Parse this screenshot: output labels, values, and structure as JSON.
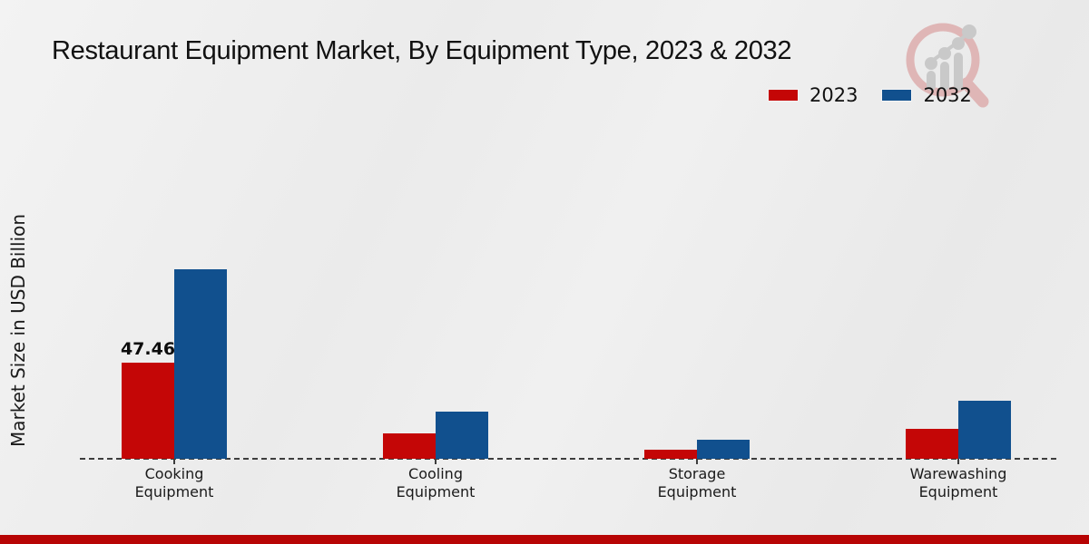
{
  "title": "Restaurant Equipment Market, By Equipment Type, 2023 & 2032",
  "ylabel": "Market Size in USD Billion",
  "legend": [
    {
      "label": "2023",
      "color": "#c40606"
    },
    {
      "label": "2032",
      "color": "#11508e"
    }
  ],
  "chart_data": {
    "type": "bar",
    "categories": [
      "Cooking Equipment",
      "Cooling Equipment",
      "Storage Equipment",
      "Warewashing Equipment"
    ],
    "series": [
      {
        "name": "2023",
        "color": "#c40606",
        "values": [
          47.46,
          12.5,
          4.5,
          14.8
        ],
        "labels": [
          "47.46",
          null,
          null,
          null
        ]
      },
      {
        "name": "2032",
        "color": "#11508e",
        "values": [
          93.6,
          23.3,
          9.4,
          28.7
        ],
        "labels": [
          null,
          null,
          null,
          null
        ]
      }
    ],
    "title": "Restaurant Equipment Market, By Equipment Type, 2023 & 2032",
    "xlabel": "",
    "ylabel": "Market Size in USD Billion",
    "ylim": [
      0,
      100
    ],
    "grid": false,
    "legend_position": "top-right",
    "baseline_style": "dashed",
    "value_labels_shown": [
      "47.46"
    ]
  },
  "watermark": {
    "icon": "magnifier-growth-chart-logo",
    "ring_color": "#dfb6b6",
    "bars_color": "#c9c9c9"
  },
  "footer": {
    "stripe_color": "#b70404"
  }
}
